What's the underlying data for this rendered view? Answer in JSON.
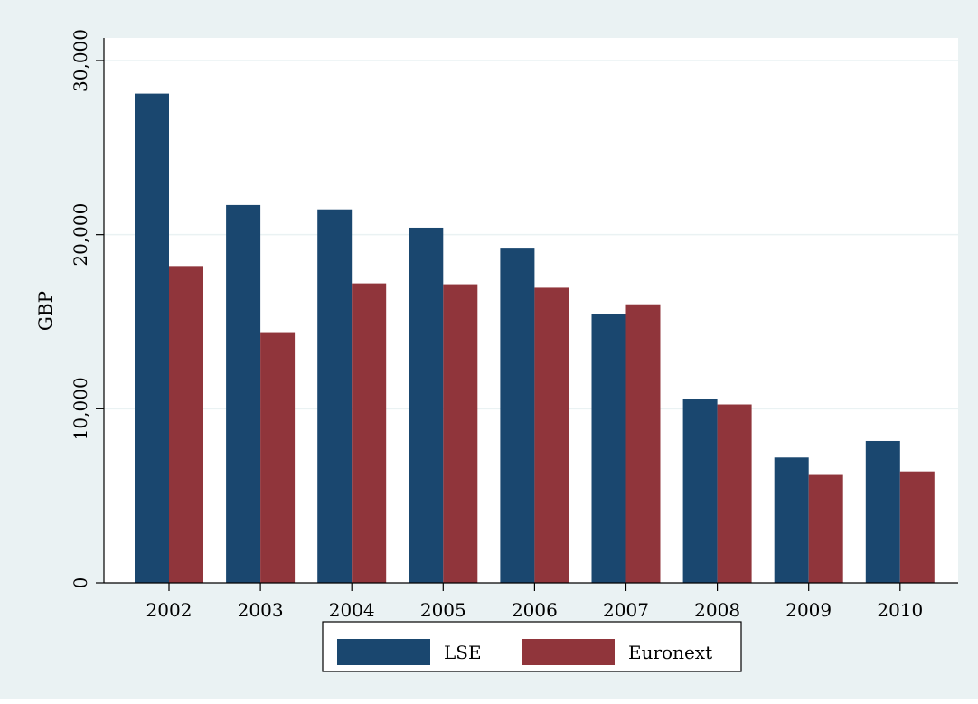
{
  "chart_data": {
    "type": "bar",
    "title": "",
    "xlabel": "",
    "ylabel": "GBP",
    "ylim": [
      0,
      30000
    ],
    "yticks": [
      0,
      10000,
      20000,
      30000
    ],
    "ytick_labels": [
      "0",
      "10,000",
      "20,000",
      "30,000"
    ],
    "grid": true,
    "legend_position": "bottom",
    "categories": [
      "2002",
      "2003",
      "2004",
      "2005",
      "2006",
      "2007",
      "2008",
      "2009",
      "2010"
    ],
    "series": [
      {
        "name": "LSE",
        "color": "#1a476f",
        "values": [
          28100,
          21700,
          21450,
          20400,
          19250,
          15450,
          10550,
          7200,
          8150
        ]
      },
      {
        "name": "Euronext",
        "color": "#90353b",
        "values": [
          18200,
          14400,
          17200,
          17150,
          16950,
          16000,
          10250,
          6200,
          6400
        ]
      }
    ],
    "colors": {
      "outer_background": "#eaf2f3",
      "plot_background": "#ffffff",
      "grid": "#eaf2f3"
    }
  }
}
